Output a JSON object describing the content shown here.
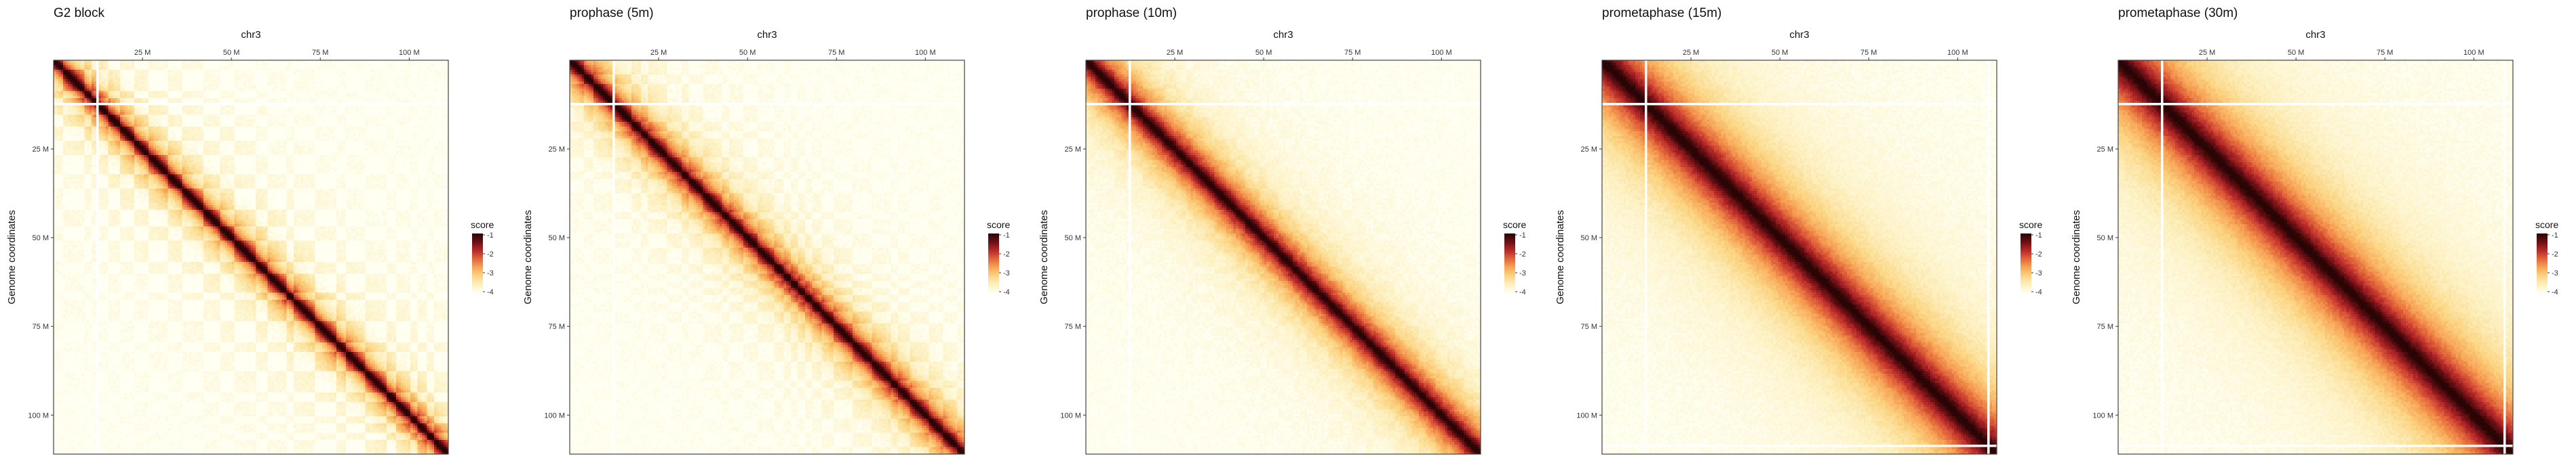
{
  "chart_data": [
    {
      "type": "heatmap",
      "title": "G2 block",
      "xlabel": "chr3",
      "ylabel": "Genome coordinates",
      "x_ticks": [
        "25 M",
        "50 M",
        "75 M",
        "100 M"
      ],
      "y_ticks": [
        "25 M",
        "50 M",
        "75 M",
        "100 M"
      ],
      "tick_values_mb": [
        25,
        50,
        75,
        100
      ],
      "axis_range_mb": [
        0,
        111
      ],
      "colorbar": {
        "title": "score",
        "ticks": [
          "-1",
          "-2",
          "-3",
          "-4"
        ],
        "range": [
          -4,
          -1
        ]
      },
      "diagonal_strength": 1.0,
      "decay_mb": 4,
      "checker_pattern": 0.55,
      "white_lines_mb": [
        12
      ],
      "grid": false
    },
    {
      "type": "heatmap",
      "title": "prophase (5m)",
      "xlabel": "chr3",
      "ylabel": "Genome coordinates",
      "x_ticks": [
        "25 M",
        "50 M",
        "75 M",
        "100 M"
      ],
      "y_ticks": [
        "25 M",
        "50 M",
        "75 M",
        "100 M"
      ],
      "tick_values_mb": [
        25,
        50,
        75,
        100
      ],
      "axis_range_mb": [
        0,
        111
      ],
      "colorbar": {
        "title": "score",
        "ticks": [
          "-1",
          "-2",
          "-3",
          "-4"
        ],
        "range": [
          -4,
          -1
        ]
      },
      "diagonal_strength": 1.0,
      "decay_mb": 5,
      "checker_pattern": 0.35,
      "white_lines_mb": [
        12
      ],
      "grid": false
    },
    {
      "type": "heatmap",
      "title": "prophase (10m)",
      "xlabel": "chr3",
      "ylabel": "Genome coordinates",
      "x_ticks": [
        "25 M",
        "50 M",
        "75 M",
        "100 M"
      ],
      "y_ticks": [
        "25 M",
        "50 M",
        "75 M",
        "100 M"
      ],
      "tick_values_mb": [
        25,
        50,
        75,
        100
      ],
      "axis_range_mb": [
        0,
        111
      ],
      "colorbar": {
        "title": "score",
        "ticks": [
          "-1",
          "-2",
          "-3",
          "-4"
        ],
        "range": [
          -4,
          -1
        ]
      },
      "diagonal_strength": 1.0,
      "decay_mb": 7,
      "checker_pattern": 0.15,
      "white_lines_mb": [
        12
      ],
      "grid": false
    },
    {
      "type": "heatmap",
      "title": "prometaphase (15m)",
      "xlabel": "chr3",
      "ylabel": "Genome coordinates",
      "x_ticks": [
        "25 M",
        "50 M",
        "75 M",
        "100 M"
      ],
      "y_ticks": [
        "25 M",
        "50 M",
        "75 M",
        "100 M"
      ],
      "tick_values_mb": [
        25,
        50,
        75,
        100
      ],
      "axis_range_mb": [
        0,
        111
      ],
      "colorbar": {
        "title": "score",
        "ticks": [
          "-1",
          "-2",
          "-3",
          "-4"
        ],
        "range": [
          -4,
          -1
        ]
      },
      "diagonal_strength": 1.0,
      "decay_mb": 12,
      "checker_pattern": 0.05,
      "white_lines_mb": [
        12,
        108
      ],
      "grid": false
    },
    {
      "type": "heatmap",
      "title": "prometaphase (30m)",
      "xlabel": "chr3",
      "ylabel": "Genome coordinates",
      "x_ticks": [
        "25 M",
        "50 M",
        "75 M",
        "100 M"
      ],
      "y_ticks": [
        "25 M",
        "50 M",
        "75 M",
        "100 M"
      ],
      "tick_values_mb": [
        25,
        50,
        75,
        100
      ],
      "axis_range_mb": [
        0,
        111
      ],
      "colorbar": {
        "title": "score",
        "ticks": [
          "-1",
          "-2",
          "-3",
          "-4"
        ],
        "range": [
          -4,
          -1
        ]
      },
      "diagonal_strength": 1.0,
      "decay_mb": 13,
      "checker_pattern": 0.03,
      "white_lines_mb": [
        12,
        108
      ],
      "grid": false
    }
  ],
  "colors": {
    "scale": [
      "#fffff2",
      "#fdf0c0",
      "#fbd583",
      "#f7a657",
      "#e3663a",
      "#b8292a",
      "#6b0f12",
      "#2a0506"
    ],
    "frame": "#444444",
    "text": "#111111"
  }
}
